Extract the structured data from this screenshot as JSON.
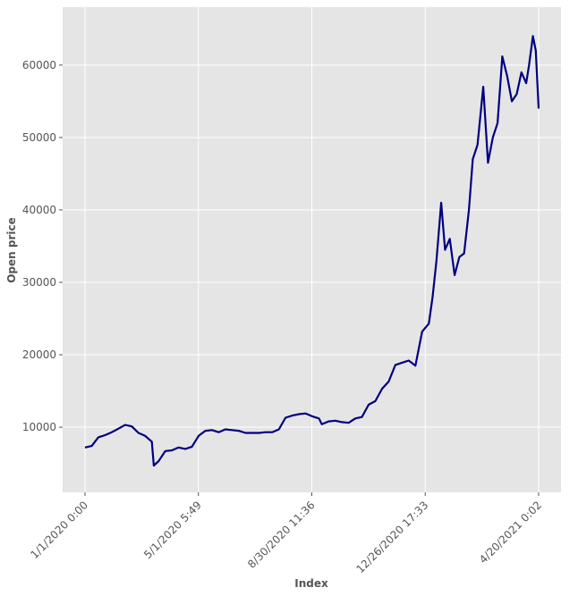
{
  "chart_data": {
    "type": "line",
    "xlabel": "Index",
    "ylabel": "Open price",
    "x_tick_labels": [
      "1/1/2020 0:00",
      "5/1/2020 5:49",
      "8/30/2020 11:36",
      "12/26/2020 17:33",
      "4/20/2021 0:02"
    ],
    "y_tick_labels": [
      "10000",
      "20000",
      "30000",
      "40000",
      "50000",
      "60000"
    ],
    "y_ticks": [
      10000,
      20000,
      30000,
      40000,
      50000,
      60000
    ],
    "ylim": [
      1000,
      68000
    ],
    "grid": true,
    "line_color": "#000080",
    "background_color": "#e5e5e5",
    "series": [
      {
        "x": [
          "1/1/2020",
          "1/8/2020",
          "1/15/2020",
          "1/22/2020",
          "1/29/2020",
          "2/5/2020",
          "2/12/2020",
          "2/19/2020",
          "2/26/2020",
          "3/4/2020",
          "3/11/2020",
          "3/13/2020",
          "3/18/2020",
          "3/25/2020",
          "4/1/2020",
          "4/8/2020",
          "4/15/2020",
          "4/22/2020",
          "4/29/2020",
          "5/6/2020",
          "5/13/2020",
          "5/20/2020",
          "5/27/2020",
          "6/3/2020",
          "6/10/2020",
          "6/17/2020",
          "6/24/2020",
          "7/1/2020",
          "7/8/2020",
          "7/15/2020",
          "7/22/2020",
          "7/29/2020",
          "8/5/2020",
          "8/12/2020",
          "8/19/2020",
          "8/26/2020",
          "9/2/2020",
          "9/5/2020",
          "9/12/2020",
          "9/19/2020",
          "9/26/2020",
          "10/3/2020",
          "10/10/2020",
          "10/17/2020",
          "10/24/2020",
          "10/31/2020",
          "11/7/2020",
          "11/14/2020",
          "11/21/2020",
          "11/28/2020",
          "12/5/2020",
          "12/12/2020",
          "12/19/2020",
          "12/26/2020",
          "12/30/2020",
          "1/3/2021",
          "1/8/2021",
          "1/12/2021",
          "1/17/2021",
          "1/22/2021",
          "1/27/2021",
          "2/1/2021",
          "2/6/2021",
          "2/10/2021",
          "2/15/2021",
          "2/21/2021",
          "2/26/2021",
          "3/3/2021",
          "3/8/2021",
          "3/13/2021",
          "3/18/2021",
          "3/23/2021",
          "3/28/2021",
          "4/2/2021",
          "4/7/2021",
          "4/10/2021",
          "4/14/2021",
          "4/17/2021",
          "4/20/2021"
        ],
        "values": [
          7200,
          7400,
          8600,
          8900,
          9300,
          9800,
          10300,
          10100,
          9200,
          8800,
          8000,
          4700,
          5300,
          6700,
          6800,
          7200,
          7000,
          7300,
          8800,
          9500,
          9600,
          9300,
          9700,
          9600,
          9500,
          9200,
          9200,
          9200,
          9300,
          9300,
          9700,
          11300,
          11600,
          11800,
          11900,
          11500,
          11200,
          10400,
          10800,
          10900,
          10700,
          10600,
          11200,
          11400,
          13100,
          13600,
          15300,
          16300,
          18600,
          18900,
          19200,
          18500,
          23200,
          24300,
          28000,
          33000,
          41000,
          34500,
          36000,
          31000,
          33500,
          34000,
          40000,
          47000,
          49000,
          57000,
          46500,
          50000,
          52000,
          61200,
          58500,
          55000,
          56000,
          59000,
          57500,
          60000,
          64000,
          62000,
          54000
        ]
      }
    ]
  }
}
